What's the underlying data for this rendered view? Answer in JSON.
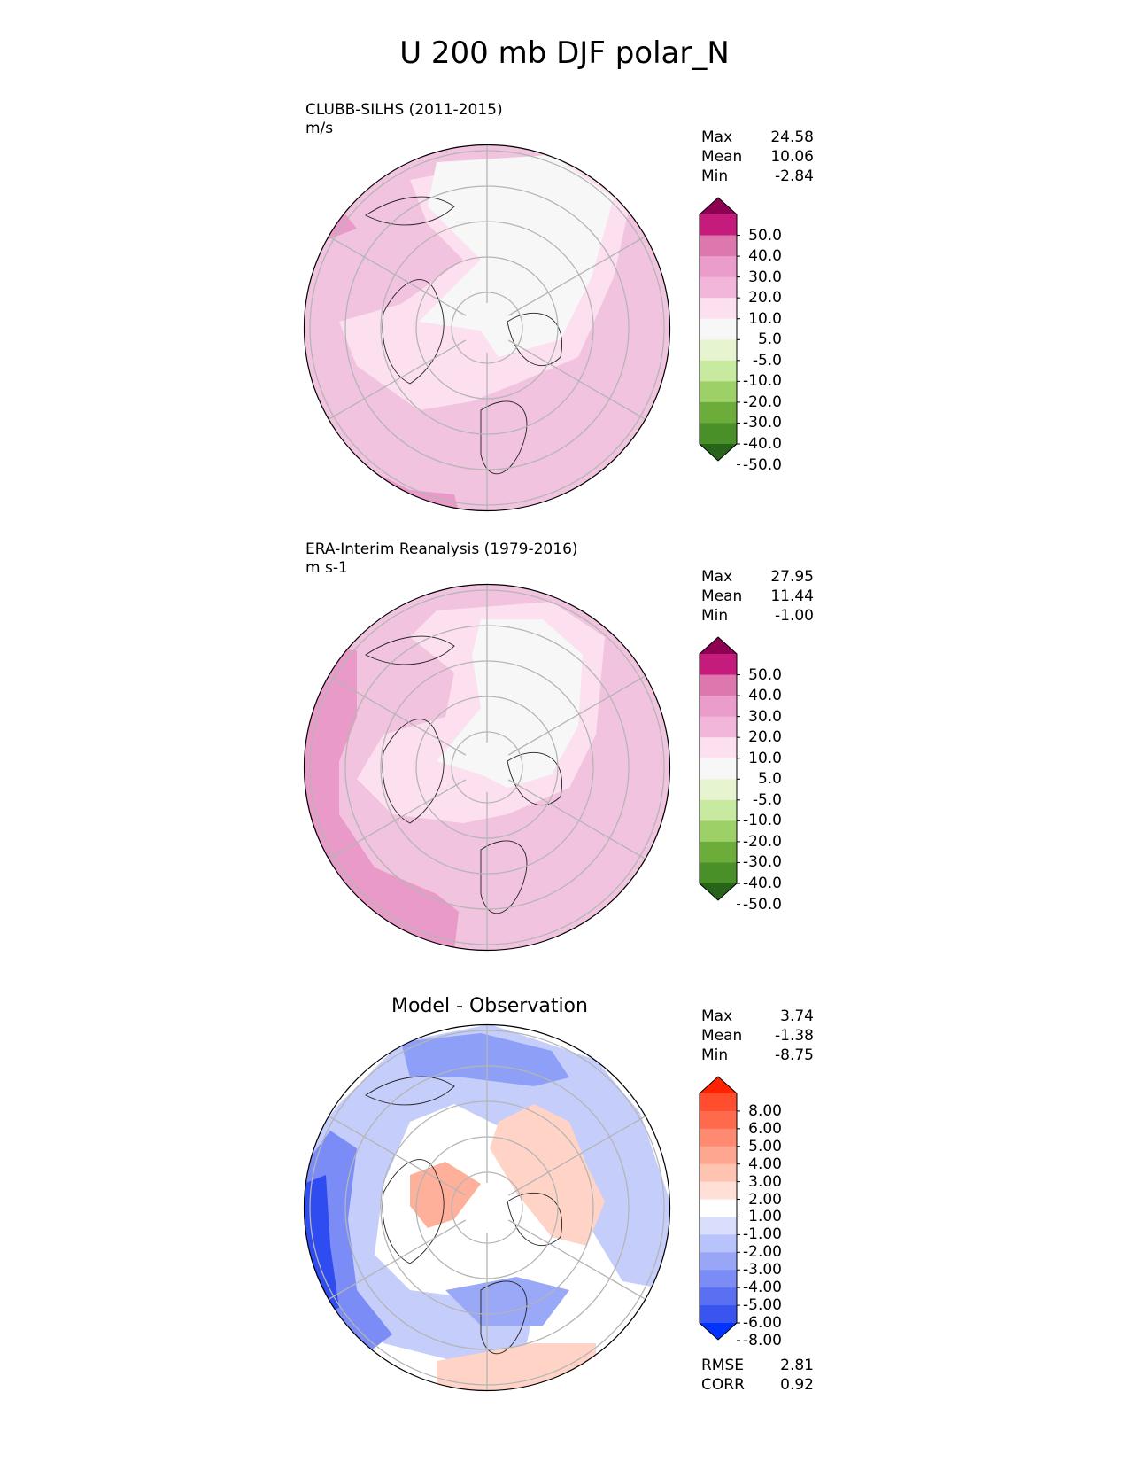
{
  "title": "U 200 mb DJF polar_N",
  "panels": [
    {
      "id": "test",
      "title_line1": "CLUBB-SILHS (2011-2015)",
      "title_line2": "m/s",
      "stats": [
        {
          "label": "Max",
          "value": "24.58"
        },
        {
          "label": "Mean",
          "value": "10.06"
        },
        {
          "label": "Min",
          "value": "-2.84"
        }
      ]
    },
    {
      "id": "ref",
      "title_line1": "ERA-Interim Reanalysis (1979-2016)",
      "title_line2": "m s-1",
      "stats": [
        {
          "label": "Max",
          "value": "27.95"
        },
        {
          "label": "Mean",
          "value": "11.44"
        },
        {
          "label": "Min",
          "value": "-1.00"
        }
      ]
    },
    {
      "id": "diff",
      "title_center": "Model - Observation",
      "stats": [
        {
          "label": "Max",
          "value": "3.74"
        },
        {
          "label": "Mean",
          "value": "-1.38"
        },
        {
          "label": "Min",
          "value": "-8.75"
        }
      ],
      "metrics": [
        {
          "label": "RMSE",
          "value": "2.81"
        },
        {
          "label": "CORR",
          "value": "0.92"
        }
      ]
    }
  ],
  "colorbars": {
    "field": {
      "ticks": [
        "50.0",
        "40.0",
        "30.0",
        "20.0",
        "10.0",
        "5.0",
        "-5.0",
        "-10.0",
        "-20.0",
        "-30.0",
        "-40.0",
        "-50.0"
      ],
      "colors": [
        "#8e0152",
        "#c51b7d",
        "#de77ae",
        "#ea9ccb",
        "#f1b6da",
        "#fde0ef",
        "#f7f7f7",
        "#e6f5d0",
        "#c7e9a0",
        "#9ed068",
        "#6cad3a",
        "#4a9028",
        "#276419"
      ]
    },
    "diff": {
      "ticks": [
        "8.00",
        "6.00",
        "5.00",
        "4.00",
        "3.00",
        "2.00",
        "1.00",
        "-1.00",
        "-2.00",
        "-3.00",
        "-4.00",
        "-5.00",
        "-6.00",
        "-8.00"
      ],
      "colors": [
        "#ff2200",
        "#ff4d2e",
        "#ff6a4c",
        "#ff8a70",
        "#ffa690",
        "#ffc3b2",
        "#ffdfd6",
        "#ffffff",
        "#d9defd",
        "#b9c3fb",
        "#99a6f8",
        "#7b8cf6",
        "#5a6ff2",
        "#3a54f0",
        "#0033ff"
      ]
    }
  },
  "chart_data": [
    {
      "type": "heatmap",
      "projection": "north polar stereographic",
      "title": "CLUBB-SILHS (2011-2015)",
      "units": "m/s",
      "stats": {
        "max": 24.58,
        "mean": 10.06,
        "min": -2.84
      },
      "levels": [
        -50,
        -40,
        -30,
        -20,
        -10,
        -5,
        5,
        10,
        20,
        30,
        40,
        50
      ]
    },
    {
      "type": "heatmap",
      "projection": "north polar stereographic",
      "title": "ERA-Interim Reanalysis (1979-2016)",
      "units": "m s-1",
      "stats": {
        "max": 27.95,
        "mean": 11.44,
        "min": -1.0
      },
      "levels": [
        -50,
        -40,
        -30,
        -20,
        -10,
        -5,
        5,
        10,
        20,
        30,
        40,
        50
      ]
    },
    {
      "type": "heatmap",
      "projection": "north polar stereographic",
      "title": "Model - Observation",
      "stats": {
        "max": 3.74,
        "mean": -1.38,
        "min": -8.75,
        "rmse": 2.81,
        "corr": 0.92
      },
      "levels": [
        -8,
        -6,
        -5,
        -4,
        -3,
        -2,
        -1,
        1,
        2,
        3,
        4,
        5,
        6,
        8
      ]
    }
  ]
}
